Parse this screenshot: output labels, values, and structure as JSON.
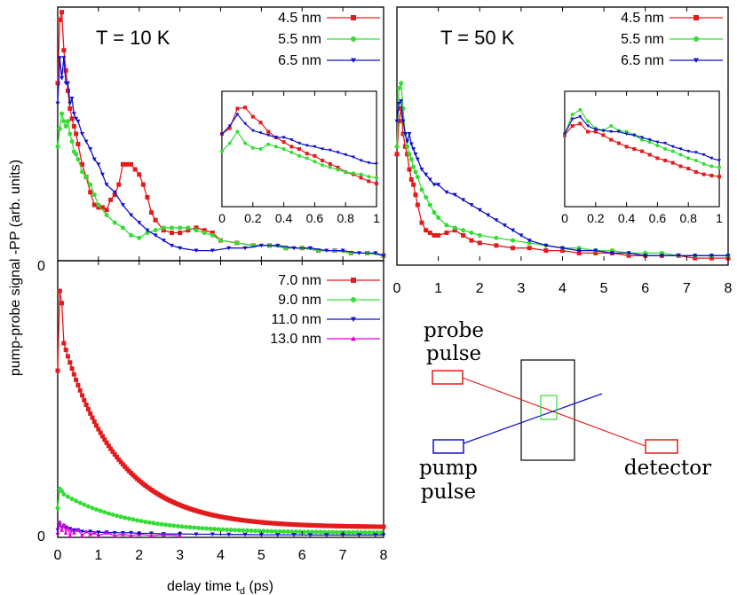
{
  "colors": {
    "red": "#e41a1c",
    "green": "#33dd33",
    "blue": "#1111cc",
    "magenta": "#dd00dd",
    "axis": "#000000"
  },
  "labels": {
    "ylabel": "pump-probe signal -PP (arb. units)",
    "xlabel_main": "delay time t",
    "xlabel_sub": "d",
    "xlabel_unit": " (ps)",
    "zero": "0"
  },
  "diagram": {
    "probe_line1": "probe",
    "probe_line2": "pulse",
    "pump_line1": "pump",
    "pump_line2": "pulse",
    "detector": "detector"
  },
  "chart_data": [
    {
      "id": "top_left",
      "type": "line",
      "title": "T = 10 K",
      "xlim": [
        0,
        8
      ],
      "ylim": [
        0,
        1
      ],
      "yticklabels": [
        "0"
      ],
      "series": [
        {
          "name": "4.5 nm",
          "color": "red",
          "marker": "square",
          "x": [
            0,
            0.05,
            0.1,
            0.15,
            0.2,
            0.25,
            0.3,
            0.35,
            0.4,
            0.45,
            0.5,
            0.6,
            0.7,
            0.8,
            0.9,
            1.0,
            1.1,
            1.2,
            1.3,
            1.4,
            1.5,
            1.6,
            1.7,
            1.8,
            1.9,
            2.0,
            2.1,
            2.2,
            2.3,
            2.4,
            2.6,
            2.8,
            3.0,
            3.2,
            3.4,
            3.6,
            3.8,
            4.0,
            4.4,
            4.8,
            5.2,
            5.6,
            6.0,
            6.4,
            6.8,
            7.2,
            7.6,
            8.0
          ],
          "y": [
            0.7,
            0.95,
            0.98,
            0.83,
            0.75,
            0.67,
            0.6,
            0.56,
            0.53,
            0.5,
            0.46,
            0.38,
            0.33,
            0.27,
            0.22,
            0.21,
            0.21,
            0.2,
            0.24,
            0.26,
            0.3,
            0.38,
            0.38,
            0.38,
            0.36,
            0.34,
            0.3,
            0.25,
            0.19,
            0.16,
            0.12,
            0.11,
            0.11,
            0.12,
            0.13,
            0.12,
            0.11,
            0.08,
            0.07,
            0.06,
            0.06,
            0.05,
            0.05,
            0.04,
            0.04,
            0.03,
            0.03,
            0.02
          ]
        },
        {
          "name": "5.5 nm",
          "color": "green",
          "marker": "circle",
          "x": [
            0,
            0.05,
            0.1,
            0.15,
            0.2,
            0.25,
            0.3,
            0.35,
            0.4,
            0.45,
            0.5,
            0.6,
            0.7,
            0.8,
            0.9,
            1.0,
            1.2,
            1.4,
            1.6,
            1.8,
            2.0,
            2.2,
            2.4,
            2.6,
            2.8,
            3.0,
            3.2,
            3.4,
            3.6,
            3.8,
            4.0,
            4.4,
            4.8,
            5.2,
            5.6,
            6.0,
            6.4,
            6.8,
            7.2,
            7.6,
            8.0
          ],
          "y": [
            0.45,
            0.52,
            0.58,
            0.55,
            0.53,
            0.55,
            0.5,
            0.47,
            0.43,
            0.42,
            0.4,
            0.35,
            0.33,
            0.3,
            0.26,
            0.22,
            0.18,
            0.15,
            0.13,
            0.1,
            0.09,
            0.11,
            0.12,
            0.13,
            0.13,
            0.13,
            0.13,
            0.12,
            0.11,
            0.1,
            0.08,
            0.07,
            0.06,
            0.06,
            0.05,
            0.05,
            0.04,
            0.04,
            0.03,
            0.03,
            0.02
          ]
        },
        {
          "name": "6.5 nm",
          "color": "blue",
          "marker": "triangle-down",
          "x": [
            0,
            0.05,
            0.1,
            0.15,
            0.2,
            0.25,
            0.3,
            0.35,
            0.4,
            0.45,
            0.5,
            0.6,
            0.7,
            0.8,
            0.9,
            1.0,
            1.1,
            1.2,
            1.4,
            1.6,
            1.8,
            2.0,
            2.2,
            2.4,
            2.6,
            2.8,
            3.0,
            3.4,
            3.8,
            4.2,
            4.6,
            5.0,
            5.4,
            5.8,
            6.2,
            6.6,
            7.0,
            7.4,
            7.8,
            8.0
          ],
          "y": [
            0.62,
            0.8,
            0.72,
            0.8,
            0.7,
            0.7,
            0.62,
            0.64,
            0.58,
            0.56,
            0.55,
            0.5,
            0.47,
            0.44,
            0.4,
            0.38,
            0.34,
            0.3,
            0.27,
            0.22,
            0.18,
            0.15,
            0.12,
            0.1,
            0.08,
            0.06,
            0.05,
            0.04,
            0.04,
            0.05,
            0.05,
            0.06,
            0.06,
            0.05,
            0.05,
            0.04,
            0.04,
            0.03,
            0.03,
            0.02
          ]
        }
      ]
    },
    {
      "id": "inset_left",
      "type": "line",
      "xlim": [
        0,
        1
      ],
      "ylim": [
        0,
        1
      ],
      "xticklabels": [
        "0",
        "0.2",
        "0.4",
        "0.6",
        "0.8",
        "1"
      ],
      "series": [
        {
          "name": "4.5 nm",
          "color": "red",
          "marker": "square",
          "x": [
            0,
            0.05,
            0.1,
            0.15,
            0.2,
            0.25,
            0.3,
            0.35,
            0.4,
            0.45,
            0.5,
            0.55,
            0.6,
            0.65,
            0.7,
            0.75,
            0.8,
            0.85,
            0.9,
            0.95,
            1.0
          ],
          "y": [
            0.63,
            0.68,
            0.85,
            0.86,
            0.78,
            0.73,
            0.65,
            0.6,
            0.56,
            0.52,
            0.5,
            0.46,
            0.44,
            0.4,
            0.37,
            0.34,
            0.3,
            0.28,
            0.25,
            0.22,
            0.2
          ]
        },
        {
          "name": "5.5 nm",
          "color": "green",
          "marker": "circle",
          "x": [
            0,
            0.05,
            0.1,
            0.15,
            0.2,
            0.25,
            0.3,
            0.35,
            0.4,
            0.45,
            0.5,
            0.55,
            0.6,
            0.65,
            0.7,
            0.75,
            0.8,
            0.85,
            0.9,
            0.95,
            1.0
          ],
          "y": [
            0.48,
            0.55,
            0.65,
            0.55,
            0.51,
            0.5,
            0.54,
            0.52,
            0.5,
            0.47,
            0.44,
            0.42,
            0.39,
            0.36,
            0.34,
            0.32,
            0.3,
            0.29,
            0.28,
            0.26,
            0.25
          ]
        },
        {
          "name": "6.5 nm",
          "color": "blue",
          "marker": "triangle-down",
          "x": [
            0,
            0.05,
            0.1,
            0.15,
            0.2,
            0.25,
            0.3,
            0.35,
            0.4,
            0.45,
            0.5,
            0.55,
            0.6,
            0.65,
            0.7,
            0.75,
            0.8,
            0.85,
            0.9,
            0.95,
            1.0
          ],
          "y": [
            0.63,
            0.7,
            0.8,
            0.72,
            0.66,
            0.64,
            0.62,
            0.6,
            0.6,
            0.58,
            0.55,
            0.53,
            0.52,
            0.5,
            0.49,
            0.47,
            0.45,
            0.43,
            0.4,
            0.38,
            0.37
          ]
        }
      ]
    },
    {
      "id": "top_right",
      "type": "line",
      "title": "T = 50 K",
      "xlim": [
        0,
        8
      ],
      "ylim": [
        0,
        1
      ],
      "xticklabels": [
        "0",
        "1",
        "2",
        "3",
        "4",
        "5",
        "6",
        "7",
        "8"
      ],
      "series": [
        {
          "name": "4.5 nm",
          "color": "red",
          "marker": "square",
          "x": [
            0,
            0.05,
            0.1,
            0.15,
            0.2,
            0.25,
            0.3,
            0.35,
            0.4,
            0.45,
            0.5,
            0.6,
            0.7,
            0.8,
            0.9,
            1.0,
            1.2,
            1.4,
            1.6,
            1.8,
            2.0,
            2.4,
            2.8,
            3.2,
            3.6,
            4.0,
            4.4,
            4.8,
            5.2,
            5.6,
            6.0,
            6.4,
            6.8,
            7.2,
            7.6,
            8.0
          ],
          "y": [
            0.42,
            0.55,
            0.6,
            0.5,
            0.45,
            0.42,
            0.36,
            0.32,
            0.3,
            0.26,
            0.22,
            0.15,
            0.12,
            0.11,
            0.1,
            0.1,
            0.11,
            0.12,
            0.1,
            0.08,
            0.07,
            0.06,
            0.05,
            0.05,
            0.04,
            0.04,
            0.03,
            0.03,
            0.03,
            0.02,
            0.02,
            0.02,
            0.02,
            0.01,
            0.01,
            0.01
          ]
        },
        {
          "name": "5.5 nm",
          "color": "green",
          "marker": "circle",
          "x": [
            0,
            0.05,
            0.1,
            0.15,
            0.2,
            0.25,
            0.3,
            0.35,
            0.4,
            0.45,
            0.5,
            0.6,
            0.7,
            0.8,
            0.9,
            1.0,
            1.2,
            1.4,
            1.6,
            1.8,
            2.0,
            2.4,
            2.8,
            3.2,
            3.6,
            4.0,
            4.4,
            4.8,
            5.2,
            5.6,
            6.0,
            6.4,
            6.8,
            7.2,
            7.6,
            8.0
          ],
          "y": [
            0.45,
            0.68,
            0.7,
            0.6,
            0.5,
            0.45,
            0.42,
            0.4,
            0.37,
            0.35,
            0.33,
            0.28,
            0.25,
            0.22,
            0.19,
            0.17,
            0.14,
            0.13,
            0.12,
            0.11,
            0.1,
            0.09,
            0.08,
            0.07,
            0.06,
            0.05,
            0.05,
            0.04,
            0.04,
            0.03,
            0.03,
            0.03,
            0.02,
            0.02,
            0.02,
            0.02
          ]
        },
        {
          "name": "6.5 nm",
          "color": "blue",
          "marker": "triangle-down",
          "x": [
            0,
            0.05,
            0.1,
            0.15,
            0.2,
            0.25,
            0.3,
            0.35,
            0.4,
            0.45,
            0.5,
            0.6,
            0.7,
            0.8,
            0.9,
            1.0,
            1.2,
            1.4,
            1.6,
            1.8,
            2.0,
            2.2,
            2.4,
            2.6,
            2.8,
            3.0,
            3.2,
            3.6,
            4.0,
            4.4,
            4.8,
            5.2,
            5.6,
            6.0,
            6.4,
            6.8,
            7.2,
            7.6,
            8.0
          ],
          "y": [
            0.55,
            0.62,
            0.63,
            0.55,
            0.5,
            0.47,
            0.5,
            0.46,
            0.44,
            0.42,
            0.4,
            0.36,
            0.34,
            0.32,
            0.3,
            0.3,
            0.27,
            0.26,
            0.24,
            0.22,
            0.2,
            0.18,
            0.16,
            0.14,
            0.12,
            0.1,
            0.08,
            0.06,
            0.05,
            0.04,
            0.04,
            0.03,
            0.03,
            0.02,
            0.02,
            0.02,
            0.02,
            0.02,
            0.02
          ]
        }
      ]
    },
    {
      "id": "inset_right",
      "type": "line",
      "xlim": [
        0,
        1
      ],
      "ylim": [
        0,
        1
      ],
      "xticklabels": [
        "0",
        "0.2",
        "0.4",
        "0.6",
        "0.8",
        "1"
      ],
      "series": [
        {
          "name": "4.5 nm",
          "color": "red",
          "marker": "square",
          "x": [
            0,
            0.05,
            0.1,
            0.15,
            0.2,
            0.25,
            0.3,
            0.35,
            0.4,
            0.45,
            0.5,
            0.55,
            0.6,
            0.65,
            0.7,
            0.75,
            0.8,
            0.85,
            0.9,
            0.95,
            1.0
          ],
          "y": [
            0.62,
            0.7,
            0.72,
            0.65,
            0.65,
            0.62,
            0.58,
            0.55,
            0.52,
            0.5,
            0.48,
            0.45,
            0.42,
            0.4,
            0.38,
            0.35,
            0.33,
            0.3,
            0.28,
            0.27,
            0.26
          ]
        },
        {
          "name": "5.5 nm",
          "color": "green",
          "marker": "circle",
          "x": [
            0,
            0.05,
            0.1,
            0.15,
            0.2,
            0.25,
            0.3,
            0.35,
            0.4,
            0.45,
            0.5,
            0.55,
            0.6,
            0.65,
            0.7,
            0.75,
            0.8,
            0.85,
            0.9,
            0.95,
            1.0
          ],
          "y": [
            0.63,
            0.8,
            0.84,
            0.74,
            0.68,
            0.66,
            0.7,
            0.66,
            0.65,
            0.62,
            0.58,
            0.56,
            0.53,
            0.5,
            0.48,
            0.45,
            0.42,
            0.4,
            0.37,
            0.35,
            0.34
          ]
        },
        {
          "name": "6.5 nm",
          "color": "blue",
          "marker": "triangle-down",
          "x": [
            0,
            0.05,
            0.1,
            0.15,
            0.2,
            0.25,
            0.3,
            0.35,
            0.4,
            0.45,
            0.5,
            0.55,
            0.6,
            0.65,
            0.7,
            0.75,
            0.8,
            0.85,
            0.9,
            0.95,
            1.0
          ],
          "y": [
            0.63,
            0.76,
            0.78,
            0.7,
            0.67,
            0.66,
            0.65,
            0.65,
            0.63,
            0.62,
            0.6,
            0.58,
            0.56,
            0.55,
            0.52,
            0.5,
            0.48,
            0.47,
            0.45,
            0.42,
            0.4
          ]
        }
      ]
    },
    {
      "id": "bottom_left",
      "type": "line",
      "xlim": [
        0,
        8
      ],
      "ylim": [
        0,
        1
      ],
      "xticklabels": [
        "0",
        "1",
        "2",
        "3",
        "4",
        "5",
        "6",
        "7",
        "8"
      ],
      "yticklabels": [
        "0"
      ],
      "series": [
        {
          "name": "7.0 nm",
          "color": "red",
          "marker": "square",
          "decay": {
            "base": 0.03,
            "peak": 0.89,
            "peak_t": 0.05,
            "start": 0.6,
            "mid": 0.7,
            "tau": 1.35,
            "step": 0.05
          }
        },
        {
          "name": "9.0 nm",
          "color": "green",
          "marker": "circle",
          "decay": {
            "base": 0.01,
            "peak": 0.17,
            "peak_t": 0.05,
            "start": 0.1,
            "mid": 0.15,
            "tau": 1.6,
            "step": 0.1
          }
        },
        {
          "name": "11.0 nm",
          "color": "blue",
          "marker": "triangle-down",
          "x": [
            0,
            0.05,
            0.1,
            0.15,
            0.2,
            0.3,
            0.4,
            0.5,
            0.6,
            0.8,
            1.0,
            1.2,
            1.4,
            1.6,
            1.8,
            2.0,
            2.3,
            2.6,
            3.0,
            3.4,
            3.8,
            4.2,
            4.6,
            5.0,
            5.4,
            5.8,
            6.2,
            6.6,
            7.0,
            7.4,
            7.8,
            8.0
          ],
          "y": [
            0.02,
            0.04,
            0.03,
            0.035,
            0.03,
            0.025,
            0.02,
            0.02,
            0.015,
            0.015,
            0.012,
            0.012,
            0.01,
            0.01,
            0.01,
            0.008,
            0.008,
            0.006,
            0.006,
            0.005,
            0.005,
            0.004,
            0.004,
            0.003,
            0.003,
            0.003,
            0.002,
            0.002,
            0.002,
            0.002,
            0.002,
            0.002
          ]
        },
        {
          "name": "13.0 nm",
          "color": "magenta",
          "marker": "triangle-up",
          "x": [
            0,
            0.05,
            0.1,
            0.15,
            0.2,
            0.25,
            0.3,
            0.35,
            0.4,
            0.5,
            0.6,
            0.7,
            0.8,
            0.9,
            1.0,
            1.2,
            1.4,
            1.6,
            1.8,
            2.0,
            2.3,
            2.6,
            3.0
          ],
          "y": [
            0.01,
            0.05,
            0.02,
            0.04,
            0.01,
            0.03,
            0.0,
            0.02,
            0.01,
            0.02,
            0.0,
            0.015,
            0.005,
            0.01,
            0.0,
            0.01,
            0.0,
            0.005,
            0.0,
            0.005,
            0.0,
            0.003,
            0.0
          ]
        }
      ]
    }
  ]
}
